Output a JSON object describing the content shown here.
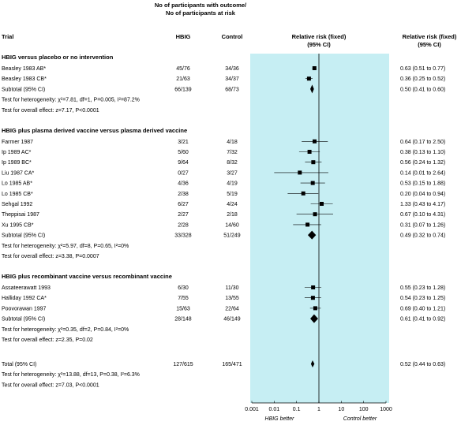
{
  "chart_data": {
    "type": "forest",
    "header": {
      "participants_line1": "No of participants with outcome/",
      "participants_line2": "No of participants at risk",
      "trial": "Trial",
      "hbig": "HBIG",
      "control": "Control",
      "rr_label": "Relative risk (fixed)",
      "rr_ci": "(95% CI)"
    },
    "axis": {
      "scale": "log",
      "ticks": [
        "0.001",
        "0.01",
        "0.1",
        "1",
        "10",
        "100",
        "1000"
      ],
      "tick_values": [
        0.001,
        0.01,
        0.1,
        1,
        10,
        100,
        1000
      ],
      "left_label": "HBIG better",
      "right_label": "Control better",
      "shading": "#c6eef3"
    },
    "sections": [
      {
        "title": "HBIG versus placebo or no intervention",
        "rows": [
          {
            "trial": "Beasley 1983 AB*",
            "hbig": "45/76",
            "control": "34/36",
            "rr": 0.63,
            "lo": 0.51,
            "hi": 0.77,
            "rr_text": "0.63 (0.51 to 0.77)",
            "kind": "study"
          },
          {
            "trial": "Beasley 1983 CB*",
            "hbig": "21/63",
            "control": "34/37",
            "rr": 0.36,
            "lo": 0.25,
            "hi": 0.52,
            "rr_text": "0.36 (0.25 to 0.52)",
            "kind": "study"
          },
          {
            "trial": "Subtotal (95% CI)",
            "hbig": "66/139",
            "control": "68/73",
            "rr": 0.5,
            "lo": 0.41,
            "hi": 0.6,
            "rr_text": "0.50 (0.41 to 0.60)",
            "kind": "subtotal"
          }
        ],
        "heterogeneity": "Test for heterogeneity: χ²=7.81, df=1, P=0.005, I²=87.2%",
        "overall": "Test for overall effect: z=7.17, P<0.0001"
      },
      {
        "title": "HBIG plus plasma derived vaccine versus plasma derived vaccine",
        "rows": [
          {
            "trial": "Farmer 1987",
            "hbig": "3/21",
            "control": "4/18",
            "rr": 0.64,
            "lo": 0.17,
            "hi": 2.5,
            "rr_text": "0.64 (0.17 to 2.50)",
            "kind": "study"
          },
          {
            "trial": "Ip 1989 AC*",
            "hbig": "5/60",
            "control": "7/32",
            "rr": 0.38,
            "lo": 0.13,
            "hi": 1.1,
            "rr_text": "0.38 (0.13 to 1.10)",
            "kind": "study"
          },
          {
            "trial": "Ip 1989 BC*",
            "hbig": "9/64",
            "control": "8/32",
            "rr": 0.56,
            "lo": 0.24,
            "hi": 1.32,
            "rr_text": "0.56 (0.24 to 1.32)",
            "kind": "study"
          },
          {
            "trial": "Liu 1987 CA*",
            "hbig": "0/27",
            "control": "3/27",
            "rr": 0.14,
            "lo": 0.01,
            "hi": 2.64,
            "rr_text": "0.14 (0.01 to 2.64)",
            "kind": "study"
          },
          {
            "trial": "Lo 1985 AB*",
            "hbig": "4/36",
            "control": "4/19",
            "rr": 0.53,
            "lo": 0.15,
            "hi": 1.88,
            "rr_text": "0.53 (0.15 to 1.88)",
            "kind": "study"
          },
          {
            "trial": "Lo 1985 CB*",
            "hbig": "2/38",
            "control": "5/19",
            "rr": 0.2,
            "lo": 0.04,
            "hi": 0.94,
            "rr_text": "0.20 (0.04 to 0.94)",
            "kind": "study"
          },
          {
            "trial": "Sehgal 1992",
            "hbig": "6/27",
            "control": "4/24",
            "rr": 1.33,
            "lo": 0.43,
            "hi": 4.17,
            "rr_text": "1.33 (0.43 to 4.17)",
            "kind": "study"
          },
          {
            "trial": "Theppisai 1987",
            "hbig": "2/27",
            "control": "2/18",
            "rr": 0.67,
            "lo": 0.1,
            "hi": 4.31,
            "rr_text": "0.67 (0.10 to 4.31)",
            "kind": "study"
          },
          {
            "trial": "Xu 1995 CB*",
            "hbig": "2/28",
            "control": "14/60",
            "rr": 0.31,
            "lo": 0.07,
            "hi": 1.26,
            "rr_text": "0.31 (0.07 to 1.26)",
            "kind": "study"
          },
          {
            "trial": "Subtotal (95% CI)",
            "hbig": "33/328",
            "control": "51/249",
            "rr": 0.49,
            "lo": 0.32,
            "hi": 0.74,
            "rr_text": "0.49 (0.32 to 0.74)",
            "kind": "subtotal"
          }
        ],
        "heterogeneity": "Test for heterogeneity: χ²=5.97, df=8, P=0.65, I²=0%",
        "overall": "Test for overall effect: z=3.38, P=0.0007"
      },
      {
        "title": "HBIG plus recombinant vaccine versus recombinant vaccine",
        "rows": [
          {
            "trial": "Assateerawatt 1993",
            "hbig": "6/30",
            "control": "11/30",
            "rr": 0.55,
            "lo": 0.23,
            "hi": 1.28,
            "rr_text": "0.55 (0.23 to 1.28)",
            "kind": "study"
          },
          {
            "trial": "Halliday 1992 CA*",
            "hbig": "7/55",
            "control": "13/55",
            "rr": 0.54,
            "lo": 0.23,
            "hi": 1.25,
            "rr_text": "0.54 (0.23 to 1.25)",
            "kind": "study"
          },
          {
            "trial": "Poovorawan 1997",
            "hbig": "15/63",
            "control": "22/64",
            "rr": 0.69,
            "lo": 0.4,
            "hi": 1.21,
            "rr_text": "0.69 (0.40 to 1.21)",
            "kind": "study"
          },
          {
            "trial": "Subtotal (95% CI)",
            "hbig": "28/148",
            "control": "46/149",
            "rr": 0.61,
            "lo": 0.41,
            "hi": 0.92,
            "rr_text": "0.61 (0.41 to 0.92)",
            "kind": "subtotal"
          }
        ],
        "heterogeneity": "Test for heterogeneity: χ²=0.35, df=2, P=0.84, I²=0%",
        "overall": "Test for overall effect: z=2.35, P=0.02"
      }
    ],
    "total": {
      "row": {
        "trial": "Total (95% CI)",
        "hbig": "127/615",
        "control": "165/471",
        "rr": 0.52,
        "lo": 0.44,
        "hi": 0.63,
        "rr_text": "0.52 (0.44 to 0.63)",
        "kind": "total"
      },
      "heterogeneity": "Test for heterogeneity: χ²=13.88, df=13, P=0.38, I²=6.3%",
      "overall": "Test for overall effect: z=7.03, P<0.0001"
    }
  }
}
